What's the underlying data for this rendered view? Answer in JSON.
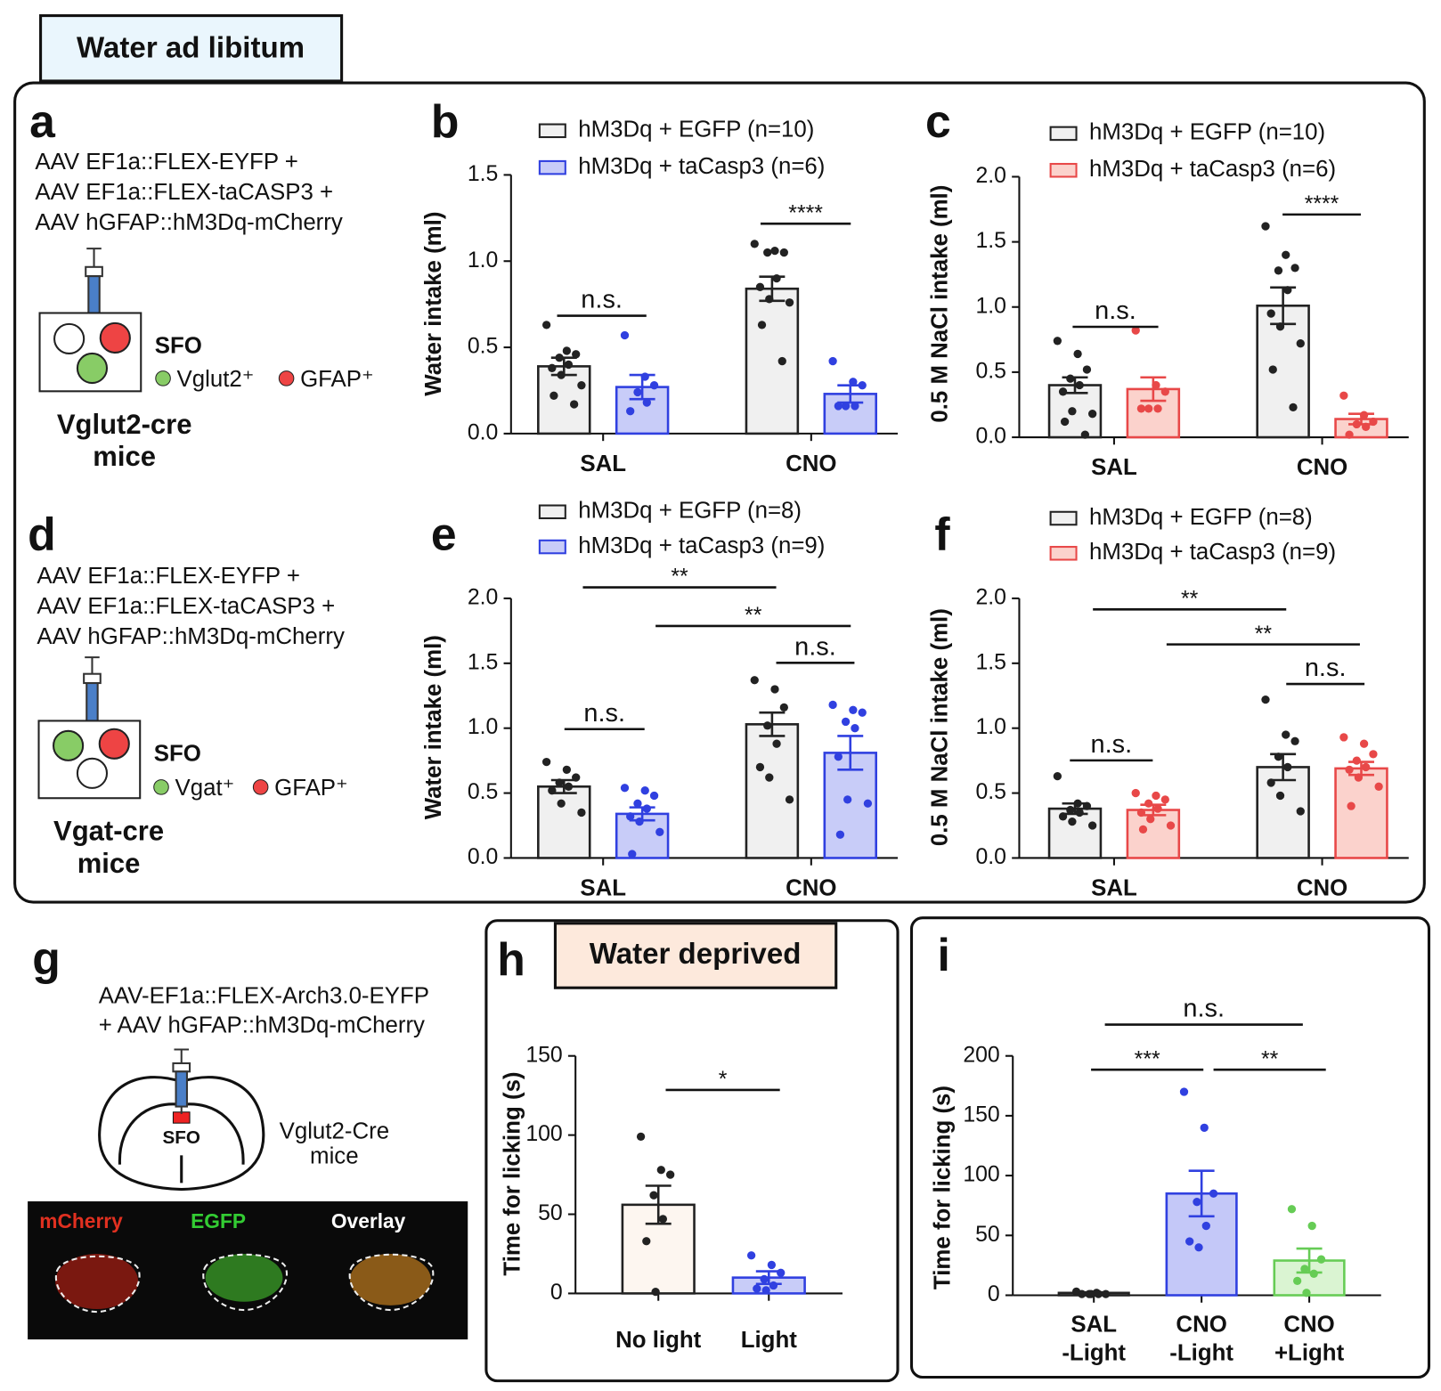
{
  "header": {
    "title": "Water ad libitum"
  },
  "deprived": {
    "title": "Water deprived"
  },
  "panel_a": {
    "letter": "a",
    "lines": [
      "AAV EF1a::FLEX-EYFP +",
      "AAV EF1a::FLEX-taCASP3 +",
      "AAV hGFAP::hM3Dq-mCherry"
    ],
    "region": "SFO",
    "legend": [
      "Vglut2⁺",
      "GFAP⁺"
    ],
    "mouse": [
      "Vglut2-cre",
      "mice"
    ]
  },
  "panel_d": {
    "letter": "d",
    "lines": [
      "AAV EF1a::FLEX-EYFP +",
      "AAV EF1a::FLEX-taCASP3 +",
      "AAV hGFAP::hM3Dq-mCherry"
    ],
    "region": "SFO",
    "legend": [
      "Vgat⁺",
      "GFAP⁺"
    ],
    "mouse": [
      "Vgat-cre",
      "mice"
    ]
  },
  "panel_g": {
    "letter": "g",
    "lines": [
      "AAV-EF1a::FLEX-Arch3.0-EYFP",
      "+ AAV hGFAP::hM3Dq-mCherry"
    ],
    "region": "SFO",
    "mouse": [
      "Vglut2-Cre",
      "mice"
    ],
    "channels": [
      "mCherry",
      "EGFP",
      "Overlay"
    ]
  },
  "chart_data": [
    {
      "type": "bar",
      "letter": "b",
      "ylabel": "Water intake (ml)",
      "categories": [
        "SAL",
        "CNO"
      ],
      "ylim": [
        0,
        1.5
      ],
      "yticks": [
        {
          "value": 0,
          "label": "0.0"
        },
        {
          "value": 0.5,
          "label": "0.5"
        },
        {
          "value": 1,
          "label": "1.0"
        },
        {
          "value": 1.5,
          "label": "1.5"
        }
      ],
      "series": [
        {
          "name": "hM3Dq + EGFP (n=10)",
          "color": "#222222",
          "fill": "#f0f0f0",
          "values": [
            0.39,
            0.84
          ],
          "errors": [
            0.05,
            0.07
          ],
          "points": [
            [
              0.63,
              0.48,
              0.46,
              0.44,
              0.4,
              0.38,
              0.34,
              0.28,
              0.22,
              0.17
            ],
            [
              1.1,
              1.06,
              1.05,
              1.05,
              0.9,
              0.85,
              0.78,
              0.76,
              0.63,
              0.42
            ]
          ]
        },
        {
          "name": "hM3Dq + taCasp3 (n=6)",
          "color": "#3040e0",
          "fill": "#c8ccf8",
          "values": [
            0.27,
            0.23
          ],
          "errors": [
            0.07,
            0.05
          ],
          "points": [
            [
              0.57,
              0.33,
              0.28,
              0.24,
              0.18,
              0.13
            ],
            [
              0.42,
              0.3,
              0.28,
              0.16,
              0.16,
              0.16
            ]
          ]
        }
      ],
      "annotations": [
        "n.s.",
        "****"
      ]
    },
    {
      "type": "bar",
      "letter": "c",
      "ylabel": "0.5 M NaCl intake (ml)",
      "categories": [
        "SAL",
        "CNO"
      ],
      "ylim": [
        0,
        2
      ],
      "yticks": [
        {
          "value": 0,
          "label": "0.0"
        },
        {
          "value": 0.5,
          "label": "0.5"
        },
        {
          "value": 1,
          "label": "1.0"
        },
        {
          "value": 1.5,
          "label": "1.5"
        },
        {
          "value": 2,
          "label": "2.0"
        }
      ],
      "series": [
        {
          "name": "hM3Dq + EGFP (n=10)",
          "color": "#222222",
          "fill": "#f0f0f0",
          "values": [
            0.4,
            1.01
          ],
          "errors": [
            0.06,
            0.14
          ],
          "points": [
            [
              0.74,
              0.64,
              0.52,
              0.45,
              0.4,
              0.35,
              0.2,
              0.18,
              0.12,
              0.02
            ],
            [
              1.62,
              1.4,
              1.3,
              1.28,
              1.13,
              0.95,
              0.85,
              0.72,
              0.52,
              0.23
            ]
          ]
        },
        {
          "name": "hM3Dq + taCasp3 (n=6)",
          "color": "#e84848",
          "fill": "#fbd2cc",
          "values": [
            0.37,
            0.14
          ],
          "errors": [
            0.09,
            0.04
          ],
          "points": [
            [
              0.82,
              0.4,
              0.35,
              0.22,
              0.22,
              0.22
            ],
            [
              0.32,
              0.17,
              0.12,
              0.1,
              0.08,
              0.02
            ]
          ]
        }
      ],
      "annotations": [
        "n.s.",
        "****"
      ]
    },
    {
      "type": "bar",
      "letter": "e",
      "ylabel": "Water intake (ml)",
      "categories": [
        "SAL",
        "CNO"
      ],
      "ylim": [
        0,
        2
      ],
      "yticks": [
        {
          "value": 0,
          "label": "0.0"
        },
        {
          "value": 0.5,
          "label": "0.5"
        },
        {
          "value": 1,
          "label": "1.0"
        },
        {
          "value": 1.5,
          "label": "1.5"
        },
        {
          "value": 2,
          "label": "2.0"
        }
      ],
      "series": [
        {
          "name": "hM3Dq + EGFP (n=8)",
          "color": "#222222",
          "fill": "#f0f0f0",
          "values": [
            0.55,
            1.03
          ],
          "errors": [
            0.05,
            0.09
          ],
          "points": [
            [
              0.74,
              0.68,
              0.62,
              0.58,
              0.55,
              0.52,
              0.42,
              0.35
            ],
            [
              1.37,
              1.3,
              1.16,
              1.02,
              0.88,
              0.7,
              0.62,
              0.45
            ]
          ]
        },
        {
          "name": "hM3Dq + taCasp3 (n=9)",
          "color": "#3040e0",
          "fill": "#c8ccf8",
          "values": [
            0.34,
            0.81
          ],
          "errors": [
            0.05,
            0.13
          ],
          "points": [
            [
              0.54,
              0.52,
              0.48,
              0.42,
              0.38,
              0.32,
              0.28,
              0.2,
              0.03
            ],
            [
              1.18,
              1.14,
              1.12,
              1.05,
              1,
              0.78,
              0.45,
              0.42,
              0.18
            ]
          ]
        }
      ],
      "annotations": [
        "**",
        "**",
        "n.s.",
        "n.s."
      ]
    },
    {
      "type": "bar",
      "letter": "f",
      "ylabel": "0.5 M NaCl intake (ml)",
      "categories": [
        "SAL",
        "CNO"
      ],
      "ylim": [
        0,
        2
      ],
      "yticks": [
        {
          "value": 0,
          "label": "0.0"
        },
        {
          "value": 0.5,
          "label": "0.5"
        },
        {
          "value": 1,
          "label": "1.0"
        },
        {
          "value": 1.5,
          "label": "1.5"
        },
        {
          "value": 2,
          "label": "2.0"
        }
      ],
      "series": [
        {
          "name": "hM3Dq + EGFP (n=8)",
          "color": "#222222",
          "fill": "#f0f0f0",
          "values": [
            0.38,
            0.7
          ],
          "errors": [
            0.04,
            0.1
          ],
          "points": [
            [
              0.63,
              0.42,
              0.4,
              0.37,
              0.35,
              0.32,
              0.28,
              0.25
            ],
            [
              1.22,
              0.95,
              0.9,
              0.78,
              0.7,
              0.58,
              0.48,
              0.36
            ]
          ]
        },
        {
          "name": "hM3Dq + taCasp3 (n=9)",
          "color": "#e84848",
          "fill": "#fbd2cc",
          "values": [
            0.37,
            0.69
          ],
          "errors": [
            0.04,
            0.05
          ],
          "points": [
            [
              0.5,
              0.48,
              0.45,
              0.42,
              0.38,
              0.35,
              0.3,
              0.25,
              0.22
            ],
            [
              0.93,
              0.88,
              0.8,
              0.75,
              0.7,
              0.68,
              0.62,
              0.55,
              0.4
            ]
          ]
        }
      ],
      "annotations": [
        "**",
        "**",
        "n.s.",
        "n.s."
      ]
    },
    {
      "type": "bar",
      "letter": "h",
      "ylabel": "Time for licking (s)",
      "categories": [
        [
          "No light"
        ],
        [
          "Light"
        ]
      ],
      "ylim": [
        0,
        150
      ],
      "yticks": [
        0,
        50,
        100,
        150
      ],
      "series": [
        {
          "color": [
            "#222222",
            "#3040e0"
          ],
          "fill": [
            "#fdf6f0",
            "#c8ccf8"
          ],
          "values": [
            56,
            10
          ],
          "errors": [
            12,
            4
          ],
          "points": [
            [
              99,
              78,
              75,
              62,
              47,
              33,
              1
            ],
            [
              24,
              18,
              13,
              9,
              5,
              3,
              2
            ]
          ]
        }
      ],
      "annotations": [
        "*"
      ]
    },
    {
      "type": "bar",
      "letter": "i",
      "ylabel": "Time for licking (s)",
      "categories": [
        [
          "SAL",
          "-Light"
        ],
        [
          "CNO",
          "-Light"
        ],
        [
          "CNO",
          "+Light"
        ]
      ],
      "ylim": [
        0,
        200
      ],
      "yticks": [
        0,
        50,
        100,
        150,
        200
      ],
      "series": [
        {
          "color": [
            "#222222",
            "#3040e0",
            "#66cc55"
          ],
          "fill": [
            "#f0f0f0",
            "#c4c8f8",
            "#daf4d2"
          ],
          "values": [
            2,
            85,
            29
          ],
          "errors": [
            0.5,
            19,
            10
          ],
          "points": [
            [
              3,
              2,
              1,
              1,
              1,
              1,
              1
            ],
            [
              170,
              140,
              85,
              78,
              58,
              45,
              40
            ],
            [
              72,
              58,
              30,
              22,
              18,
              12,
              2
            ]
          ]
        }
      ],
      "annotations": [
        "n.s.",
        "***",
        "**"
      ]
    }
  ]
}
